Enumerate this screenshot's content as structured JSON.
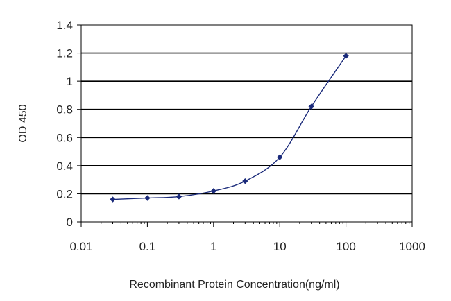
{
  "chart_data": {
    "type": "line",
    "title": "",
    "xlabel": "Recombinant Protein Concentration(ng/ml)",
    "ylabel": "OD 450",
    "x_scale": "log",
    "xlim": [
      0.01,
      1000
    ],
    "ylim": [
      0,
      1.4
    ],
    "x_ticks": [
      0.01,
      0.1,
      1,
      10,
      100,
      1000
    ],
    "x_tick_labels": [
      "0.01",
      "0.1",
      "1",
      "10",
      "100",
      "1000"
    ],
    "y_ticks": [
      0,
      0.2,
      0.4,
      0.6,
      0.8,
      1,
      1.2,
      1.4
    ],
    "y_tick_labels": [
      "0",
      "0.2",
      "0.4",
      "0.6",
      "0.8",
      "1",
      "1.2",
      "1.4"
    ],
    "grid": "horizontal",
    "legend": "none",
    "series": [
      {
        "x": [
          0.03,
          0.1,
          0.3,
          1,
          3,
          10,
          30,
          100
        ],
        "y": [
          0.16,
          0.17,
          0.18,
          0.22,
          0.29,
          0.46,
          0.82,
          1.18
        ],
        "color": "#1a2a7a"
      }
    ]
  }
}
